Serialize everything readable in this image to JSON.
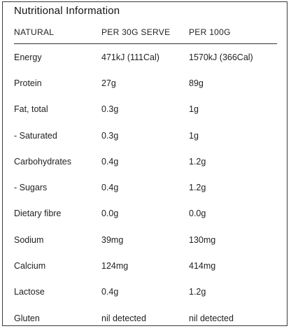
{
  "title": "Nutritional Information",
  "headers": [
    "NATURAL",
    "PER 30G SERVE",
    "PER 100G"
  ],
  "rows": [
    [
      "Energy",
      "471kJ (111Cal)",
      "1570kJ (366Cal)"
    ],
    [
      "Protein",
      "27g",
      "89g"
    ],
    [
      "Fat, total",
      "0.3g",
      "1g"
    ],
    [
      "- Saturated",
      "0.3g",
      "1g"
    ],
    [
      "Carbohydrates",
      "0.4g",
      "1.2g"
    ],
    [
      "- Sugars",
      "0.4g",
      "1.2g"
    ],
    [
      "Dietary fibre",
      "0.0g",
      "0.0g"
    ],
    [
      "Sodium",
      "39mg",
      "130mg"
    ],
    [
      "Calcium",
      "124mg",
      "414mg"
    ],
    [
      "Lactose",
      "0.4g",
      "1.2g"
    ],
    [
      "Gluten",
      "nil detected",
      "nil detected"
    ]
  ]
}
